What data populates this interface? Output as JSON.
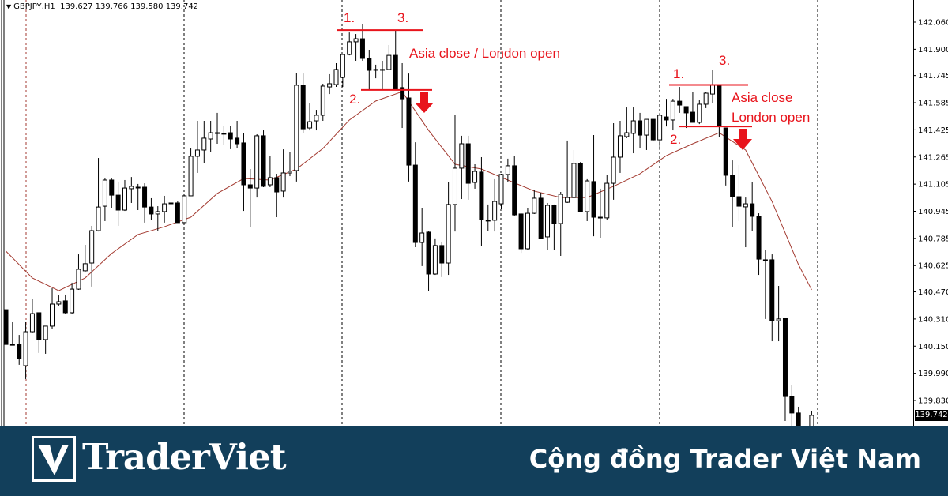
{
  "header": {
    "symbol": "GBPJPY,H1",
    "ohlc": "139.627 139.766 139.580 139.742"
  },
  "annotations": {
    "left": {
      "label1": "1.",
      "label2": "2.",
      "label3": "3.",
      "text": "Asia close / London open"
    },
    "right": {
      "label1": "1.",
      "label2": "2.",
      "label3": "3.",
      "text_line1": "Asia close",
      "text_line2": "London open"
    }
  },
  "colors": {
    "annotation": "#e8141c",
    "ma_line": "#a33a30",
    "bull_body": "#ffffff",
    "bear_body": "#000000",
    "banner_bg": "#123f5b"
  },
  "banner": {
    "logo_text": "TraderViet",
    "logo_letter": "V",
    "slogan": "Cộng đồng Trader Việt Nam"
  },
  "chart_data": {
    "type": "candlestick",
    "symbol": "GBPJPY",
    "timeframe": "H1",
    "ylim": [
      139.7,
      142.1
    ],
    "y_ticks": [
      "142.060",
      "141.900",
      "141.745",
      "141.585",
      "141.425",
      "141.265",
      "141.105",
      "140.945",
      "140.785",
      "140.625",
      "140.470",
      "140.310",
      "140.150",
      "139.990",
      "139.830"
    ],
    "last_price": "139.742",
    "candles_ohlc": [
      [
        140.365,
        140.384,
        140.142,
        140.16
      ],
      [
        140.16,
        140.291,
        140.156,
        140.16
      ],
      [
        140.16,
        140.216,
        140.04,
        140.077
      ],
      [
        140.035,
        140.291,
        139.956,
        140.235
      ],
      [
        140.235,
        140.43,
        140.226,
        140.342
      ],
      [
        140.347,
        140.347,
        140.11,
        140.189
      ],
      [
        140.189,
        140.268,
        140.105,
        140.268
      ],
      [
        140.268,
        140.491,
        140.249,
        140.398
      ],
      [
        140.398,
        140.449,
        140.389,
        140.412
      ],
      [
        140.417,
        140.454,
        140.338,
        140.347
      ],
      [
        140.347,
        140.524,
        140.338,
        140.486
      ],
      [
        140.486,
        140.691,
        140.482,
        140.603
      ],
      [
        140.594,
        140.747,
        140.584,
        140.636
      ],
      [
        140.64,
        140.859,
        140.501,
        140.831
      ],
      [
        140.831,
        141.259,
        140.826,
        140.97
      ],
      [
        140.975,
        141.138,
        140.887,
        141.129
      ],
      [
        141.129,
        141.138,
        140.966,
        141.04
      ],
      [
        141.04,
        141.12,
        140.859,
        140.952
      ],
      [
        140.952,
        141.129,
        140.947,
        141.082
      ],
      [
        141.078,
        141.147,
        140.994,
        141.092
      ],
      [
        141.087,
        141.106,
        140.952,
        141.087
      ],
      [
        141.087,
        141.11,
        140.878,
        140.97
      ],
      [
        140.97,
        141.022,
        140.896,
        140.929
      ],
      [
        140.929,
        140.975,
        140.831,
        140.943
      ],
      [
        140.943,
        141.036,
        140.878,
        140.989
      ],
      [
        140.994,
        141.031,
        140.947,
        140.994
      ],
      [
        140.994,
        141.003,
        140.878,
        140.878
      ],
      [
        140.878,
        141.04,
        140.878,
        141.036
      ],
      [
        141.036,
        141.315,
        141.036,
        141.269
      ],
      [
        141.269,
        141.478,
        141.171,
        141.306
      ],
      [
        141.306,
        141.478,
        141.227,
        141.376
      ],
      [
        141.371,
        141.478,
        141.292,
        141.408
      ],
      [
        141.408,
        141.525,
        141.343,
        141.408
      ],
      [
        141.404,
        141.45,
        141.338,
        141.404
      ],
      [
        141.408,
        141.45,
        141.311,
        141.371
      ],
      [
        141.376,
        141.478,
        141.315,
        141.343
      ],
      [
        141.348,
        141.408,
        140.947,
        141.101
      ],
      [
        141.101,
        141.194,
        140.854,
        141.082
      ],
      [
        141.082,
        141.399,
        141.026,
        141.39
      ],
      [
        141.39,
        141.422,
        141.087,
        141.092
      ],
      [
        141.101,
        141.273,
        141.087,
        141.143
      ],
      [
        141.143,
        141.166,
        140.91,
        141.059
      ],
      [
        141.064,
        141.31,
        141.026,
        141.171
      ],
      [
        141.171,
        141.292,
        141.152,
        141.18
      ],
      [
        141.185,
        141.762,
        141.12,
        141.688
      ],
      [
        141.688,
        141.757,
        141.408,
        141.431
      ],
      [
        141.436,
        141.585,
        141.422,
        141.473
      ],
      [
        141.478,
        141.543,
        141.422,
        141.511
      ],
      [
        141.511,
        141.697,
        141.478,
        141.683
      ],
      [
        141.678,
        141.753,
        141.636,
        141.697
      ],
      [
        141.692,
        141.818,
        141.678,
        141.781
      ],
      [
        141.734,
        141.869,
        141.678,
        141.869
      ],
      [
        141.869,
        141.999,
        141.864,
        141.944
      ],
      [
        141.944,
        141.99,
        141.832,
        141.962
      ],
      [
        141.962,
        142.046,
        141.832,
        141.846
      ],
      [
        141.846,
        141.897,
        141.66,
        141.776
      ],
      [
        141.781,
        141.809,
        141.729,
        141.781
      ],
      [
        141.781,
        141.832,
        141.66,
        141.781
      ],
      [
        141.781,
        141.925,
        141.781,
        141.864
      ],
      [
        141.864,
        142.013,
        141.66,
        141.66
      ],
      [
        141.674,
        141.818,
        141.436,
        141.608
      ],
      [
        141.613,
        141.757,
        141.12,
        141.217
      ],
      [
        141.217,
        141.352,
        140.733,
        140.761
      ],
      [
        140.761,
        140.966,
        140.622,
        140.817
      ],
      [
        140.822,
        140.826,
        140.473,
        140.575
      ],
      [
        140.575,
        140.785,
        140.57,
        140.743
      ],
      [
        140.743,
        140.766,
        140.557,
        140.64
      ],
      [
        140.64,
        141.115,
        140.57,
        140.985
      ],
      [
        140.985,
        141.515,
        140.826,
        141.199
      ],
      [
        141.199,
        141.39,
        141.017,
        141.343
      ],
      [
        141.343,
        141.39,
        141.013,
        141.11
      ],
      [
        141.115,
        141.222,
        141.078,
        141.18
      ],
      [
        141.176,
        141.264,
        140.738,
        140.896
      ],
      [
        140.892,
        140.985,
        140.831,
        140.892
      ],
      [
        140.892,
        141.134,
        140.826,
        141.003
      ],
      [
        140.989,
        141.166,
        140.957,
        141.162
      ],
      [
        141.162,
        141.255,
        141.115,
        141.213
      ],
      [
        141.213,
        141.269,
        140.915,
        140.924
      ],
      [
        140.929,
        140.933,
        140.7,
        140.724
      ],
      [
        140.724,
        140.966,
        140.719,
        140.933
      ],
      [
        140.933,
        141.073,
        140.929,
        141.022
      ],
      [
        141.022,
        141.055,
        140.78,
        140.785
      ],
      [
        140.794,
        140.994,
        140.715,
        140.98
      ],
      [
        140.98,
        140.985,
        140.719,
        140.873
      ],
      [
        140.873,
        141.059,
        140.682,
        141.045
      ],
      [
        140.998,
        141.362,
        140.994,
        141.026
      ],
      [
        141.026,
        141.306,
        141.022,
        141.227
      ],
      [
        141.227,
        141.236,
        140.943,
        140.943
      ],
      [
        140.943,
        141.134,
        140.887,
        141.124
      ],
      [
        141.12,
        141.394,
        140.798,
        140.91
      ],
      [
        140.91,
        141.078,
        140.789,
        140.91
      ],
      [
        140.906,
        141.157,
        140.896,
        141.11
      ],
      [
        141.11,
        141.464,
        141.013,
        141.264
      ],
      [
        141.264,
        141.478,
        141.171,
        141.39
      ],
      [
        141.385,
        141.557,
        141.376,
        141.408
      ],
      [
        141.404,
        141.557,
        141.287,
        141.478
      ],
      [
        141.478,
        141.525,
        141.315,
        141.394
      ],
      [
        141.394,
        141.487,
        141.306,
        141.487
      ],
      [
        141.487,
        141.487,
        141.362,
        141.366
      ],
      [
        141.366,
        141.525,
        141.306,
        141.511
      ],
      [
        141.501,
        141.608,
        141.445,
        141.483
      ],
      [
        141.483,
        141.608,
        141.422,
        141.594
      ],
      [
        141.594,
        141.678,
        141.525,
        141.571
      ],
      [
        141.562,
        141.562,
        141.436,
        141.525
      ],
      [
        141.529,
        141.646,
        141.469,
        141.469
      ],
      [
        141.469,
        141.599,
        141.459,
        141.576
      ],
      [
        141.576,
        141.646,
        141.553,
        141.641
      ],
      [
        141.636,
        141.776,
        141.585,
        141.688
      ],
      [
        141.688,
        141.688,
        141.385,
        141.445
      ],
      [
        141.436,
        141.436,
        141.097,
        141.157
      ],
      [
        141.157,
        141.245,
        140.85,
        141.031
      ],
      [
        141.031,
        141.218,
        140.887,
        140.975
      ],
      [
        140.971,
        141.026,
        140.733,
        140.989
      ],
      [
        140.989,
        141.115,
        140.831,
        140.915
      ],
      [
        140.915,
        140.933,
        140.57,
        140.663
      ],
      [
        140.659,
        140.719,
        140.31,
        140.659
      ],
      [
        140.659,
        140.691,
        140.179,
        140.3
      ],
      [
        140.3,
        140.505,
        140.179,
        140.31
      ],
      [
        140.314,
        140.314,
        139.709,
        139.853
      ],
      [
        139.853,
        139.919,
        139.677,
        139.756
      ],
      [
        139.756,
        139.793,
        139.653,
        139.677
      ],
      null,
      [
        139.627,
        139.766,
        139.58,
        139.742
      ]
    ],
    "moving_average": {
      "bar_index": [
        0,
        4,
        8,
        12,
        16,
        20,
        24,
        28,
        32,
        36,
        40,
        44,
        48,
        52,
        56,
        60,
        64,
        68,
        72,
        76,
        80,
        84,
        88,
        92,
        96,
        100,
        104,
        108,
        112,
        116,
        120,
        122
      ],
      "values": [
        140.71,
        140.552,
        140.477,
        140.552,
        140.696,
        140.808,
        140.854,
        140.91,
        141.05,
        141.138,
        141.129,
        141.194,
        141.315,
        141.483,
        141.595,
        141.65,
        141.422,
        141.222,
        141.194,
        141.129,
        141.064,
        141.026,
        141.026,
        141.092,
        141.166,
        141.273,
        141.343,
        141.408,
        141.306,
        141.003,
        140.631,
        140.482
      ]
    },
    "annotation_levels": {
      "left": {
        "level1_3": 142.013,
        "level2": 141.66
      },
      "right": {
        "level1_3": 141.69,
        "level2": 141.445
      }
    },
    "grid": false
  }
}
